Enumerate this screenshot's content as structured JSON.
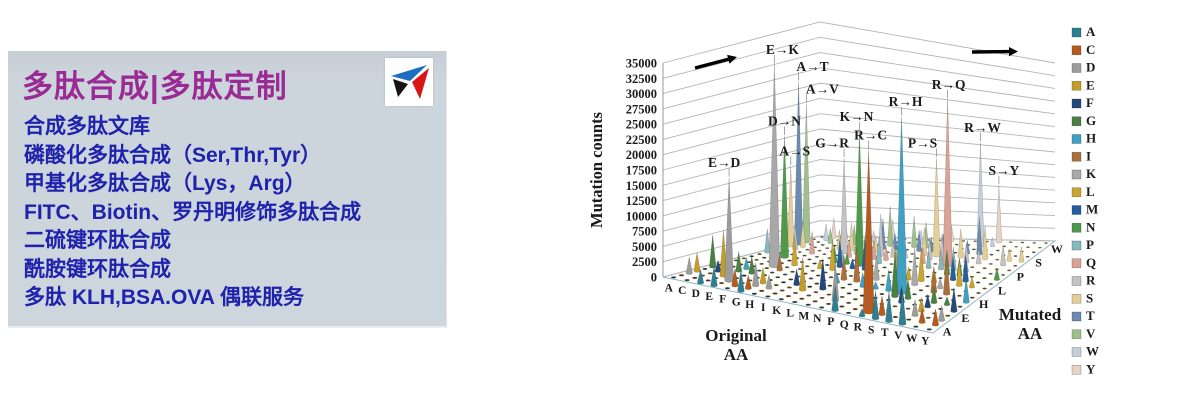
{
  "promo": {
    "title": "多肽合成|多肽定制",
    "logo": "tri-arrow-brand-logo",
    "items": [
      "合成多肽文库",
      "磷酸化多肽合成（Ser,Thr,Tyr）",
      "甲基化多肽合成（Lys，Arg）",
      "FITC、Biotin、罗丹明修饰多肽合成",
      "二硫键环肽合成",
      "酰胺键环肽合成",
      "多肽 KLH,BSA.OVA 偶联服务"
    ],
    "colors": {
      "panel_bg": "#cdd5dd",
      "title": "#9a2a94",
      "text": "#1e22ac"
    }
  },
  "chart_data": {
    "type": "3d-cone-column",
    "title": "",
    "xlabel": "Original AA",
    "depth_label": "Mutated AA",
    "ylabel": "Mutation counts",
    "ylim": [
      0,
      35000
    ],
    "ytick_step": 2500,
    "grid": true,
    "legend_position": "right",
    "categories": [
      "A",
      "C",
      "D",
      "E",
      "F",
      "G",
      "H",
      "I",
      "K",
      "L",
      "M",
      "N",
      "P",
      "Q",
      "R",
      "S",
      "T",
      "V",
      "W",
      "Y"
    ],
    "depth_categories": [
      "A",
      "C",
      "D",
      "E",
      "F",
      "G",
      "H",
      "I",
      "K",
      "L",
      "M",
      "N",
      "P",
      "Q",
      "R",
      "S",
      "T",
      "V",
      "W",
      "Y"
    ],
    "depth_axis_shown_ticks": [
      "A",
      "E",
      "H",
      "L",
      "P",
      "S",
      "W"
    ],
    "series": [
      {
        "name": "A",
        "color": "#2e7f93",
        "values": [
          0,
          800,
          2200,
          3200,
          400,
          3500,
          600,
          500,
          700,
          900,
          400,
          600,
          4200,
          800,
          1200,
          4800,
          5200,
          6000,
          300,
          400
        ]
      },
      {
        "name": "C",
        "color": "#b55b20",
        "values": [
          500,
          0,
          300,
          400,
          2800,
          2200,
          400,
          600,
          300,
          800,
          300,
          400,
          500,
          300,
          28000,
          3200,
          700,
          600,
          2400,
          2800
        ]
      },
      {
        "name": "D",
        "color": "#9c9c9c",
        "values": [
          2600,
          400,
          0,
          17000,
          300,
          3800,
          2200,
          400,
          500,
          300,
          200,
          6500,
          400,
          600,
          400,
          800,
          500,
          2800,
          200,
          2600
        ]
      },
      {
        "name": "E",
        "color": "#c49c2a",
        "values": [
          3000,
          200,
          7500,
          0,
          200,
          2600,
          400,
          300,
          5500,
          400,
          300,
          500,
          400,
          4800,
          600,
          400,
          300,
          2400,
          200,
          300
        ]
      },
      {
        "name": "F",
        "color": "#24477e",
        "values": [
          300,
          1800,
          200,
          200,
          0,
          300,
          400,
          2600,
          200,
          5200,
          800,
          300,
          300,
          200,
          400,
          2800,
          400,
          2200,
          700,
          4200
        ]
      },
      {
        "name": "G",
        "color": "#4a8142",
        "values": [
          5200,
          1600,
          3200,
          2800,
          200,
          0,
          300,
          200,
          400,
          300,
          200,
          300,
          500,
          300,
          7800,
          3400,
          300,
          3000,
          1400,
          200
        ]
      },
      {
        "name": "H",
        "color": "#3fa0c4",
        "values": [
          400,
          300,
          1800,
          200,
          600,
          200,
          0,
          300,
          400,
          1600,
          200,
          2400,
          1200,
          3600,
          31000,
          300,
          400,
          300,
          200,
          4400
        ]
      },
      {
        "name": "I",
        "color": "#ad6f3a",
        "values": [
          300,
          200,
          200,
          200,
          2600,
          200,
          300,
          0,
          400,
          4200,
          5800,
          600,
          200,
          200,
          400,
          500,
          4600,
          7200,
          200,
          300
        ]
      },
      {
        "name": "K",
        "color": "#a8a8a8",
        "values": [
          300,
          200,
          300,
          33500,
          200,
          300,
          200,
          400,
          0,
          300,
          400,
          4200,
          200,
          3800,
          6500,
          400,
          1800,
          200,
          200,
          200
        ]
      },
      {
        "name": "L",
        "color": "#c9a62e",
        "values": [
          400,
          600,
          200,
          300,
          4800,
          300,
          1400,
          5200,
          300,
          0,
          4400,
          300,
          5600,
          2200,
          5800,
          2600,
          400,
          4600,
          1800,
          300
        ]
      },
      {
        "name": "M",
        "color": "#275d9e",
        "values": [
          300,
          200,
          200,
          200,
          300,
          200,
          200,
          4600,
          1600,
          5200,
          0,
          300,
          200,
          300,
          400,
          300,
          4200,
          4800,
          200,
          200
        ]
      },
      {
        "name": "N",
        "color": "#4f9a4a",
        "values": [
          300,
          200,
          20000,
          400,
          200,
          300,
          2800,
          1800,
          23000,
          200,
          300,
          0,
          200,
          400,
          300,
          4400,
          3200,
          200,
          200,
          2200
        ]
      },
      {
        "name": "P",
        "color": "#87b8c0",
        "values": [
          3800,
          200,
          200,
          300,
          300,
          300,
          1600,
          200,
          300,
          4600,
          200,
          300,
          0,
          2800,
          3400,
          4200,
          2600,
          300,
          200,
          200
        ]
      },
      {
        "name": "Q",
        "color": "#dba396",
        "values": [
          300,
          200,
          300,
          3600,
          200,
          300,
          2800,
          200,
          3200,
          2400,
          200,
          400,
          2600,
          0,
          30000,
          300,
          300,
          200,
          200,
          200
        ]
      },
      {
        "name": "R",
        "color": "#c3c3c6",
        "values": [
          400,
          3800,
          200,
          300,
          200,
          16000,
          3400,
          400,
          7200,
          2800,
          2200,
          300,
          3600,
          4800,
          0,
          3400,
          2600,
          300,
          3800,
          300
        ]
      },
      {
        "name": "S",
        "color": "#e3cf96",
        "values": [
          13000,
          4200,
          400,
          300,
          3200,
          4600,
          300,
          2800,
          300,
          3800,
          300,
          4800,
          17500,
          300,
          5200,
          0,
          6200,
          400,
          2200,
          2800
        ]
      },
      {
        "name": "T",
        "color": "#6b8cb0",
        "values": [
          26500,
          200,
          300,
          300,
          200,
          300,
          400,
          5200,
          2800,
          400,
          3600,
          2600,
          3200,
          300,
          2400,
          6800,
          0,
          300,
          200,
          300
        ]
      },
      {
        "name": "V",
        "color": "#9fc08d",
        "values": [
          22500,
          300,
          2400,
          2800,
          3200,
          2600,
          200,
          6800,
          300,
          5400,
          4400,
          200,
          300,
          200,
          400,
          300,
          400,
          0,
          200,
          300
        ]
      },
      {
        "name": "W",
        "color": "#c3cfdb",
        "values": [
          200,
          2600,
          100,
          200,
          300,
          1800,
          200,
          200,
          200,
          2400,
          100,
          200,
          200,
          200,
          19000,
          1600,
          200,
          200,
          0,
          300
        ]
      },
      {
        "name": "Y",
        "color": "#e4d3c6",
        "values": [
          300,
          3200,
          1800,
          200,
          4800,
          200,
          3400,
          300,
          200,
          300,
          200,
          2600,
          200,
          300,
          400,
          10500,
          300,
          300,
          400,
          0
        ]
      }
    ],
    "annotations": [
      {
        "label": "E→K",
        "original": "E",
        "mutated": "K",
        "value": 33500,
        "dx": 8
      },
      {
        "label": "A→T",
        "original": "A",
        "mutated": "T",
        "value": 26500,
        "dx": 14
      },
      {
        "label": "A→V",
        "original": "A",
        "mutated": "V",
        "value": 22500,
        "dx": 16
      },
      {
        "label": "D→N",
        "original": "D",
        "mutated": "N",
        "value": 20000,
        "dx": 0
      },
      {
        "label": "K→N",
        "original": "K",
        "mutated": "N",
        "value": 23000,
        "dx": -3
      },
      {
        "label": "R→C",
        "original": "R",
        "mutated": "C",
        "value": 28000,
        "dx": 2
      },
      {
        "label": "R→H",
        "original": "R",
        "mutated": "H",
        "value": 31000,
        "dx": 4
      },
      {
        "label": "R→Q",
        "original": "R",
        "mutated": "Q",
        "value": 30000,
        "dx": 1
      },
      {
        "label": "G→R",
        "original": "G",
        "mutated": "R",
        "value": 16000,
        "dx": -12
      },
      {
        "label": "A→S",
        "original": "A",
        "mutated": "S",
        "value": 13000,
        "dx": 4
      },
      {
        "label": "E→D",
        "original": "E",
        "mutated": "D",
        "value": 17000,
        "dx": -5
      },
      {
        "label": "P→S",
        "original": "P",
        "mutated": "S",
        "value": 17500,
        "dx": -14
      },
      {
        "label": "R→W",
        "original": "R",
        "mutated": "W",
        "value": 19000,
        "dx": 2
      },
      {
        "label": "S→Y",
        "original": "S",
        "mutated": "Y",
        "value": 10500,
        "dx": 5
      }
    ],
    "arrows": [
      "top-left-direction-arrow",
      "top-right-direction-arrow"
    ]
  }
}
